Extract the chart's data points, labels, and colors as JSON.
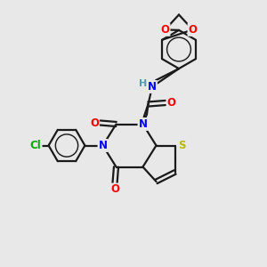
{
  "bg_color": "#e8e8e8",
  "bond_color": "#1a1a1a",
  "bond_width": 1.6,
  "N_color": "#0000ff",
  "O_color": "#ff0000",
  "S_color": "#b8b800",
  "Cl_color": "#00aa00",
  "H_color": "#5599aa",
  "font_size": 8.5,
  "fig_width": 3.0,
  "fig_height": 3.0,
  "dpi": 100,
  "xlim": [
    0,
    10
  ],
  "ylim": [
    0,
    10
  ]
}
